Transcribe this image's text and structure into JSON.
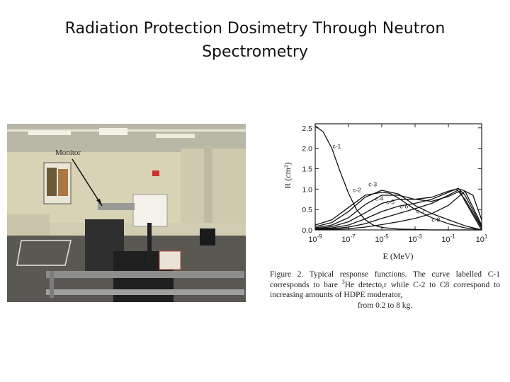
{
  "slide": {
    "title_line1": "Radiation Protection Dosimetry Through Neutron",
    "title_line2": "Spectrometry"
  },
  "photo": {
    "label": "Monitor"
  },
  "figure": {
    "caption_prefix": "Figure 2. Typical response functions. The curve labelled C-1 corresponds to bare ",
    "caption_sup": "3",
    "caption_mid": "He detecto,r while C-2 to C8 correspond to increasing amounts of HDPE moderator,",
    "caption_last": "from 0.2 to 8 kg."
  },
  "chart_data": {
    "type": "line",
    "xlabel": "E (MeV)",
    "ylabel": "R (cm²)",
    "xscale": "log",
    "xlim": [
      1e-09,
      10
    ],
    "ylim": [
      0,
      2.6
    ],
    "xticks": [
      1e-09,
      1e-07,
      1e-05,
      0.001,
      0.1,
      10
    ],
    "xtick_labels": [
      {
        "base": "10",
        "exp": "-9"
      },
      {
        "base": "10",
        "exp": "-7"
      },
      {
        "base": "10",
        "exp": "-5"
      },
      {
        "base": "10",
        "exp": "-3"
      },
      {
        "base": "10",
        "exp": "-1"
      },
      {
        "base": "10",
        "exp": "1"
      }
    ],
    "yticks": [
      0.0,
      0.5,
      1.0,
      1.5,
      2.0,
      2.5
    ],
    "ytick_labels": [
      "0.0",
      "0.5",
      "1.0",
      "1.5",
      "2.0",
      "2.5"
    ],
    "grid": false,
    "series": [
      {
        "name": "c-1",
        "x": [
          1e-09,
          3e-09,
          1e-08,
          3e-08,
          1e-07,
          3e-07,
          1e-06,
          3e-06,
          1e-05,
          0.0001,
          0.001,
          0.01,
          0.1,
          1,
          10
        ],
        "y": [
          2.55,
          2.4,
          2.0,
          1.45,
          0.9,
          0.5,
          0.25,
          0.12,
          0.06,
          0.02,
          0.01,
          0.0,
          0.0,
          0.0,
          0.0
        ]
      },
      {
        "name": "c-2",
        "x": [
          1e-09,
          1e-08,
          1e-07,
          1e-06,
          1e-05,
          3e-05,
          0.0001,
          0.001,
          0.01,
          0.1,
          1,
          10
        ],
        "y": [
          0.12,
          0.25,
          0.55,
          0.85,
          0.92,
          0.9,
          0.78,
          0.5,
          0.3,
          0.15,
          0.05,
          0.0
        ]
      },
      {
        "name": "c-3",
        "x": [
          1e-09,
          1e-08,
          1e-07,
          1e-06,
          1e-05,
          0.0001,
          0.001,
          0.01,
          0.1,
          1,
          10
        ],
        "y": [
          0.08,
          0.18,
          0.45,
          0.8,
          0.97,
          0.88,
          0.6,
          0.4,
          0.25,
          0.1,
          0.0
        ]
      },
      {
        "name": "c-4",
        "x": [
          1e-09,
          1e-08,
          1e-07,
          1e-06,
          1e-05,
          0.0001,
          0.001,
          0.01,
          0.1,
          0.5,
          1,
          10
        ],
        "y": [
          0.05,
          0.12,
          0.3,
          0.62,
          0.85,
          0.85,
          0.75,
          0.7,
          0.82,
          0.95,
          0.7,
          0.0
        ]
      },
      {
        "name": "c-5",
        "x": [
          1e-09,
          1e-08,
          1e-07,
          1e-06,
          1e-05,
          0.0001,
          0.001,
          0.01,
          0.1,
          0.3,
          1,
          10
        ],
        "y": [
          0.03,
          0.08,
          0.2,
          0.42,
          0.65,
          0.75,
          0.75,
          0.8,
          0.95,
          1.0,
          0.75,
          0.05
        ]
      },
      {
        "name": "c-6",
        "x": [
          1e-09,
          1e-08,
          1e-07,
          1e-06,
          1e-05,
          0.0001,
          0.001,
          0.01,
          0.1,
          0.4,
          1,
          10
        ],
        "y": [
          0.02,
          0.05,
          0.12,
          0.27,
          0.45,
          0.58,
          0.65,
          0.75,
          0.92,
          1.02,
          0.85,
          0.08
        ]
      },
      {
        "name": "c-7",
        "x": [
          1e-09,
          1e-08,
          1e-07,
          1e-06,
          1e-05,
          0.0001,
          0.001,
          0.01,
          0.1,
          0.5,
          1,
          10
        ],
        "y": [
          0.01,
          0.03,
          0.07,
          0.15,
          0.28,
          0.4,
          0.52,
          0.65,
          0.85,
          1.0,
          0.95,
          0.12
        ]
      },
      {
        "name": "c-8",
        "x": [
          1e-09,
          1e-08,
          1e-07,
          1e-06,
          1e-05,
          0.0001,
          0.001,
          0.01,
          0.1,
          1,
          3,
          10
        ],
        "y": [
          0.005,
          0.01,
          0.03,
          0.07,
          0.13,
          0.2,
          0.28,
          0.4,
          0.6,
          0.95,
          0.85,
          0.25
        ]
      }
    ]
  }
}
